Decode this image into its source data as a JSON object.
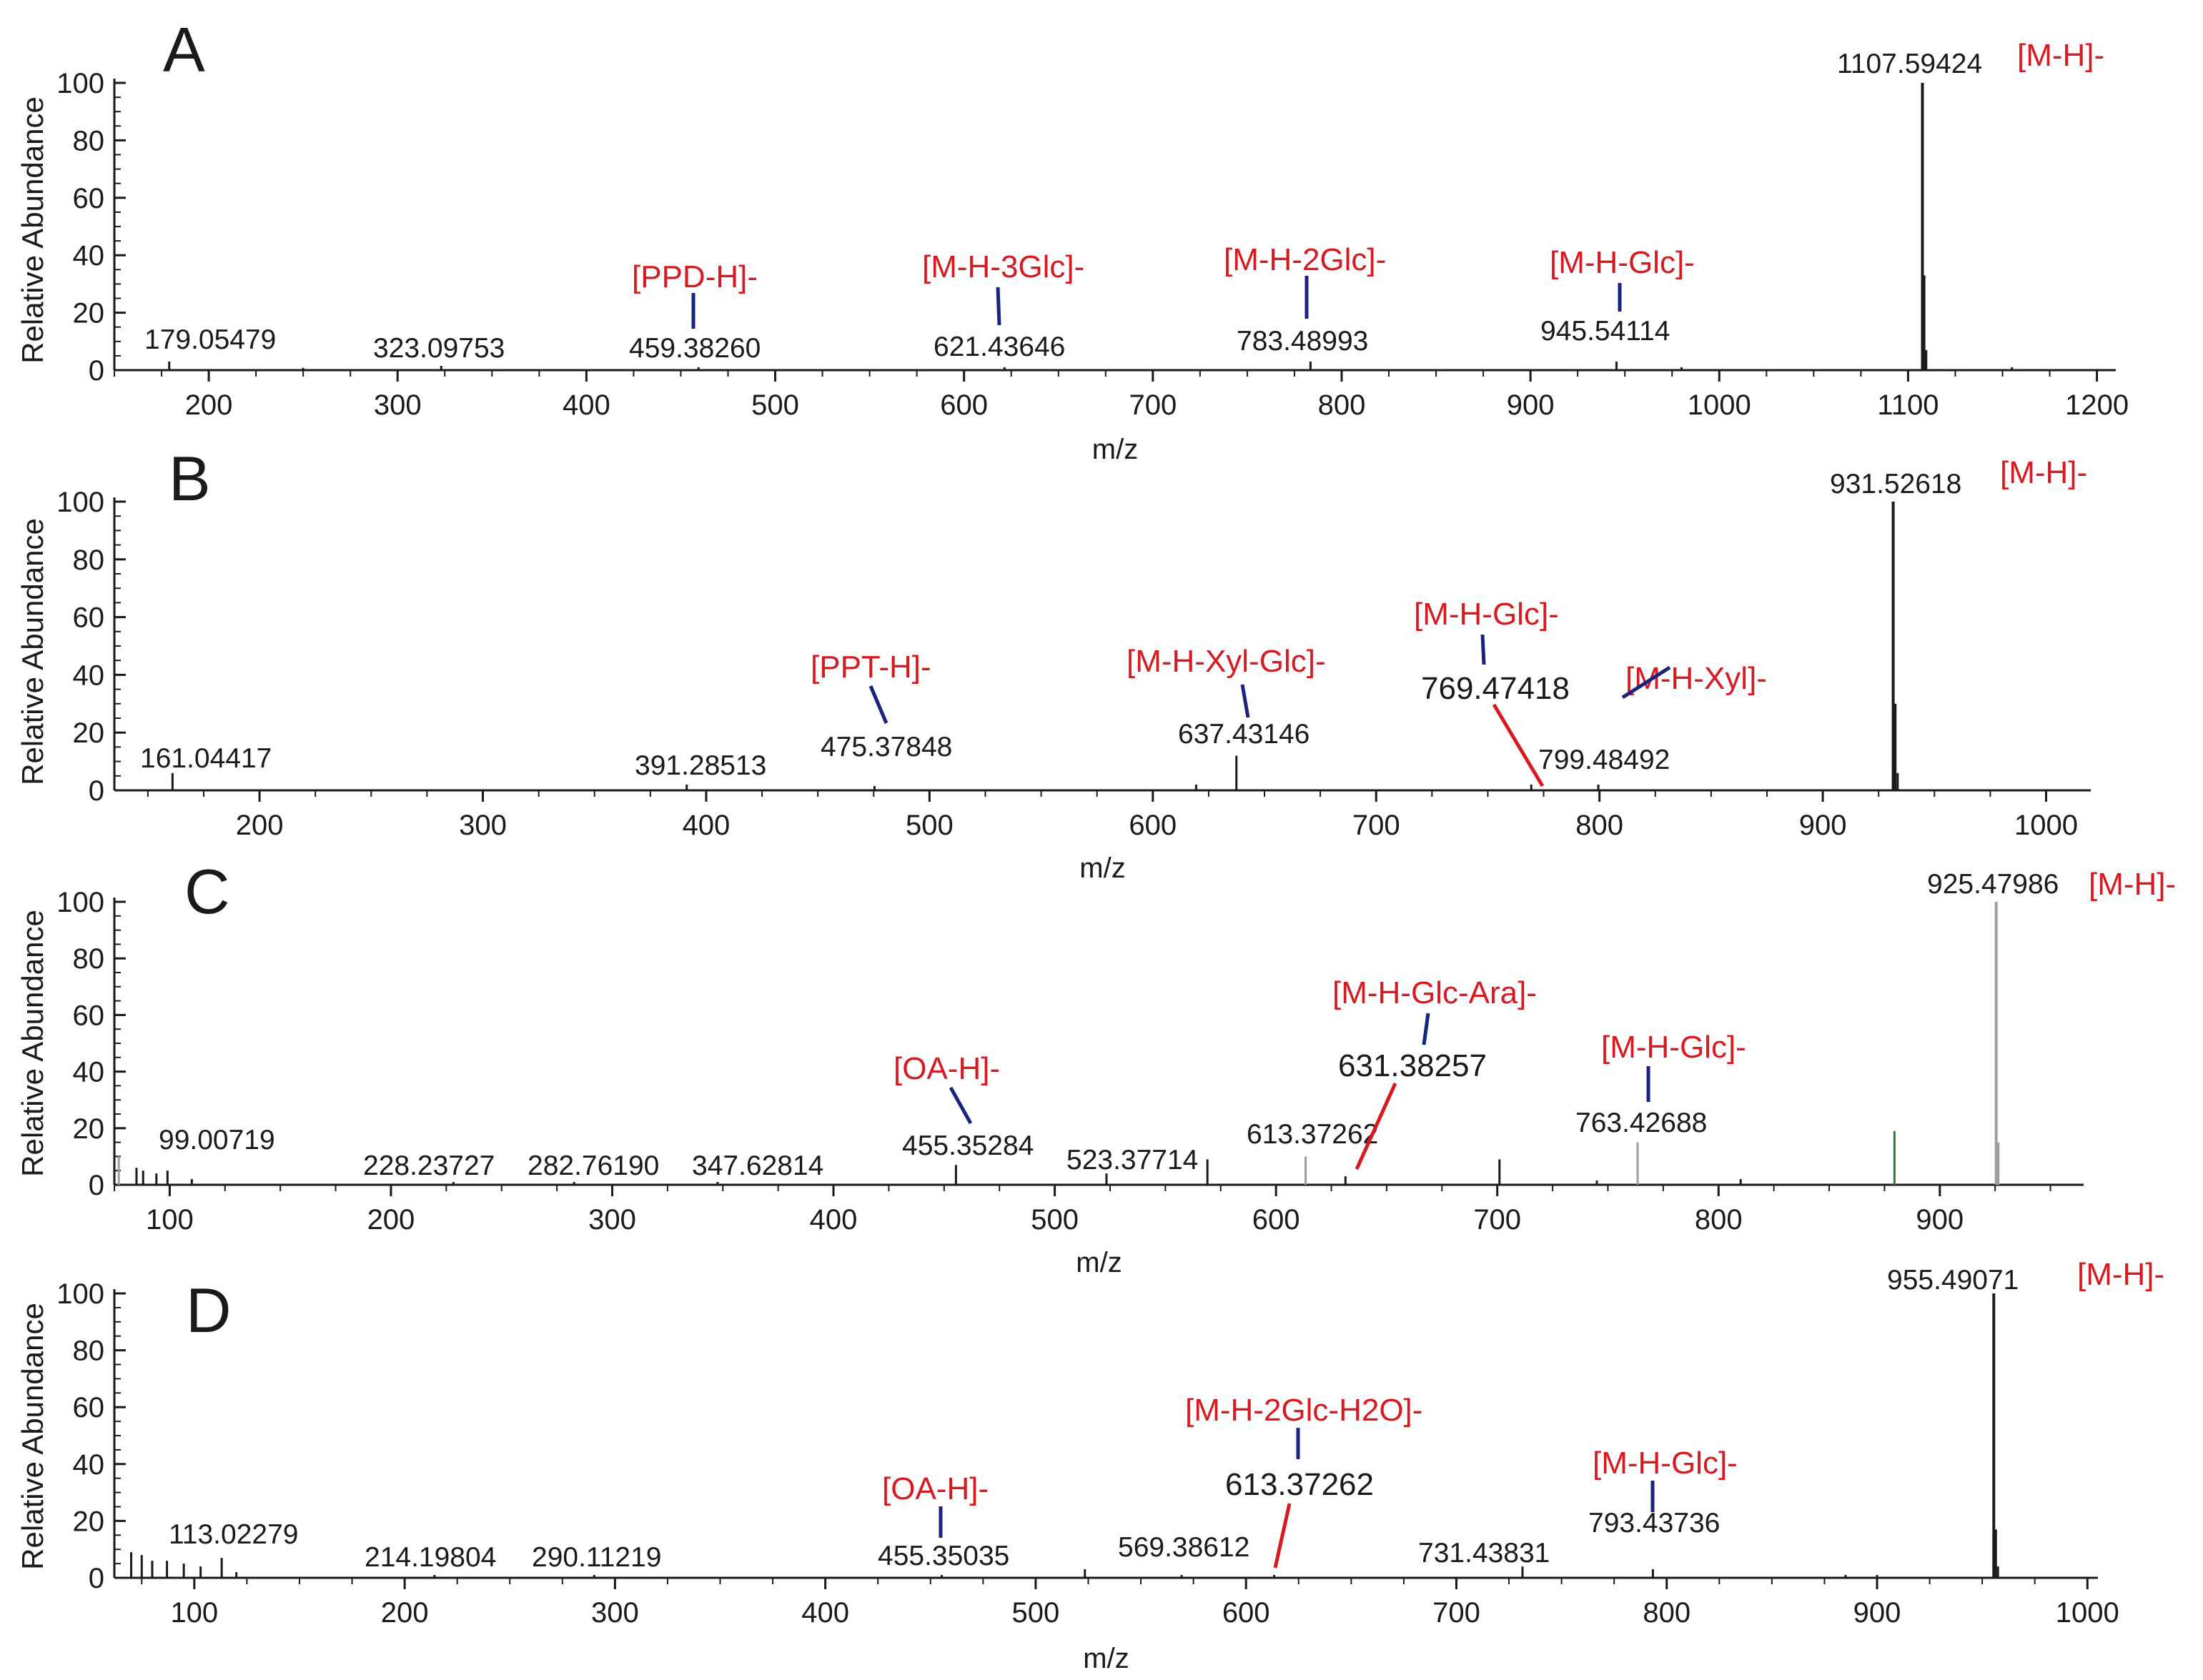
{
  "colors": {
    "axis": "#1a1a1a",
    "annotation": "#d71920",
    "bracket_blue": "#1a237e",
    "bracket_red": "#d71920",
    "peak_gray": "#9e9e9e",
    "peak_green": "#2e7d32"
  },
  "chart_data": [
    {
      "type": "bar",
      "panel": "A",
      "title": "A",
      "xlabel": "m/z",
      "ylabel": "Relative Abundance",
      "xlim": [
        150,
        1210
      ],
      "ylim": [
        0,
        100
      ],
      "xticks": [
        200,
        300,
        400,
        500,
        600,
        700,
        800,
        900,
        1000,
        1100,
        1200
      ],
      "yticks": [
        0,
        20,
        40,
        60,
        80,
        100
      ],
      "peaks": [
        {
          "x": 179.05479,
          "y": 3,
          "label": "179.05479"
        },
        {
          "x": 323.09753,
          "y": 1.5,
          "label": "323.09753"
        },
        {
          "x": 459.3826,
          "y": 1,
          "label": "459.38260"
        },
        {
          "x": 621.43646,
          "y": 1,
          "label": "621.43646"
        },
        {
          "x": 783.48993,
          "y": 3,
          "label": "783.48993"
        },
        {
          "x": 945.54114,
          "y": 3,
          "label": "945.54114"
        },
        {
          "x": 1107.59424,
          "y": 100,
          "label": "1107.59424"
        },
        {
          "x": 1108.6,
          "y": 33
        },
        {
          "x": 1109.6,
          "y": 7
        },
        {
          "x": 250,
          "y": 0.8
        },
        {
          "x": 980,
          "y": 1
        },
        {
          "x": 1155,
          "y": 1
        }
      ],
      "annotations": [
        {
          "text": "[M-H]-",
          "x": 1107.59424
        },
        {
          "text": "[PPD-H]-",
          "x": 459.3826
        },
        {
          "text": "[M-H-3Glc]-",
          "x": 621.43646
        },
        {
          "text": "[M-H-2Glc]-",
          "x": 783.48993
        },
        {
          "text": "[M-H-Glc]-",
          "x": 945.54114
        }
      ]
    },
    {
      "type": "bar",
      "panel": "B",
      "title": "B",
      "xlabel": "m/z",
      "ylabel": "Relative Abundance",
      "xlim": [
        135,
        1020
      ],
      "ylim": [
        0,
        100
      ],
      "xticks": [
        200,
        300,
        400,
        500,
        600,
        700,
        800,
        900,
        1000
      ],
      "yticks": [
        0,
        20,
        40,
        60,
        80,
        100
      ],
      "peaks": [
        {
          "x": 161.04417,
          "y": 6,
          "label": "161.04417"
        },
        {
          "x": 391.28513,
          "y": 2,
          "label": "391.28513"
        },
        {
          "x": 475.37848,
          "y": 1.5,
          "label": "475.37848"
        },
        {
          "x": 637.43146,
          "y": 12,
          "label": "637.43146"
        },
        {
          "x": 769.47418,
          "y": 2,
          "label": "769.47418"
        },
        {
          "x": 799.48492,
          "y": 2,
          "label": "799.48492"
        },
        {
          "x": 931.52618,
          "y": 100,
          "label": "931.52618"
        },
        {
          "x": 932.53,
          "y": 30
        },
        {
          "x": 933.53,
          "y": 6
        },
        {
          "x": 619.4,
          "y": 2
        }
      ],
      "annotations": [
        {
          "text": "[M-H]-",
          "x": 931.52618
        },
        {
          "text": "[PPT-H]-",
          "x": 475.37848
        },
        {
          "text": "[M-H-Xyl-Glc]-",
          "x": 637.43146
        },
        {
          "text": "[M-H-Glc]-",
          "x": 769.47418
        },
        {
          "text": "[M-H-Xyl]-",
          "x": 799.48492
        }
      ]
    },
    {
      "type": "bar",
      "panel": "C",
      "title": "C",
      "xlabel": "m/z",
      "ylabel": "Relative Abundance",
      "xlim": [
        75,
        965
      ],
      "ylim": [
        0,
        100
      ],
      "xticks": [
        100,
        200,
        300,
        400,
        500,
        600,
        700,
        800,
        900
      ],
      "yticks": [
        0,
        20,
        40,
        60,
        80,
        100
      ],
      "peaks": [
        {
          "x": 99.00719,
          "y": 5,
          "label": "99.00719"
        },
        {
          "x": 228.23727,
          "y": 1,
          "label": "228.23727"
        },
        {
          "x": 282.7619,
          "y": 1,
          "label": "282.76190"
        },
        {
          "x": 347.62814,
          "y": 1,
          "label": "347.62814"
        },
        {
          "x": 455.35284,
          "y": 7,
          "label": "455.35284"
        },
        {
          "x": 523.37714,
          "y": 4,
          "label": "523.37714"
        },
        {
          "x": 613.37262,
          "y": 10,
          "label": "613.37262"
        },
        {
          "x": 631.38257,
          "y": 3,
          "label": "631.38257"
        },
        {
          "x": 763.42688,
          "y": 15,
          "label": "763.42688"
        },
        {
          "x": 925.47986,
          "y": 100,
          "label": "925.47986"
        },
        {
          "x": 926.48,
          "y": 15
        },
        {
          "x": 879.5,
          "y": 19,
          "color": "green"
        },
        {
          "x": 701,
          "y": 9
        },
        {
          "x": 569,
          "y": 9
        },
        {
          "x": 77,
          "y": 10
        },
        {
          "x": 85,
          "y": 6
        },
        {
          "x": 88,
          "y": 5
        },
        {
          "x": 94,
          "y": 4
        },
        {
          "x": 110,
          "y": 2
        },
        {
          "x": 810,
          "y": 2
        },
        {
          "x": 745,
          "y": 1.5
        }
      ],
      "annotations": [
        {
          "text": "[M-H]-",
          "x": 925.47986
        },
        {
          "text": "[OA-H]-",
          "x": 455.35284
        },
        {
          "text": "[M-H-Glc-Ara]-",
          "x": 631.38257
        },
        {
          "text": "[M-H-Glc]-",
          "x": 763.42688
        }
      ]
    },
    {
      "type": "bar",
      "panel": "D",
      "title": "D",
      "xlabel": "m/z",
      "ylabel": "Relative Abundance",
      "xlim": [
        62,
        1005
      ],
      "ylim": [
        0,
        100
      ],
      "xticks": [
        100,
        200,
        300,
        400,
        500,
        600,
        700,
        800,
        900,
        1000
      ],
      "yticks": [
        0,
        20,
        40,
        60,
        80,
        100
      ],
      "peaks": [
        {
          "x": 113.02279,
          "y": 7,
          "label": "113.02279"
        },
        {
          "x": 214.19804,
          "y": 1,
          "label": "214.19804"
        },
        {
          "x": 290.11219,
          "y": 1,
          "label": "290.11219"
        },
        {
          "x": 455.35035,
          "y": 1,
          "label": "455.35035"
        },
        {
          "x": 569.38612,
          "y": 1,
          "label": "569.38612"
        },
        {
          "x": 613.37262,
          "y": 1,
          "label": "613.37262"
        },
        {
          "x": 731.43831,
          "y": 4,
          "label": "731.43831"
        },
        {
          "x": 793.43736,
          "y": 3,
          "label": "793.43736"
        },
        {
          "x": 955.49071,
          "y": 100,
          "label": "955.49071"
        },
        {
          "x": 956.49,
          "y": 17
        },
        {
          "x": 957.49,
          "y": 4
        },
        {
          "x": 523.4,
          "y": 3
        },
        {
          "x": 70,
          "y": 9
        },
        {
          "x": 75,
          "y": 8
        },
        {
          "x": 80,
          "y": 6
        },
        {
          "x": 87,
          "y": 6
        },
        {
          "x": 95,
          "y": 5
        },
        {
          "x": 103,
          "y": 4
        },
        {
          "x": 120,
          "y": 2
        },
        {
          "x": 885,
          "y": 1
        },
        {
          "x": 900,
          "y": 1
        }
      ],
      "annotations": [
        {
          "text": "[M-H]-",
          "x": 955.49071
        },
        {
          "text": "[OA-H]-",
          "x": 455.35035
        },
        {
          "text": "[M-H-2Glc-H2O]-",
          "x": 613.37262
        },
        {
          "text": "[M-H-Glc]-",
          "x": 793.43736
        }
      ]
    }
  ]
}
